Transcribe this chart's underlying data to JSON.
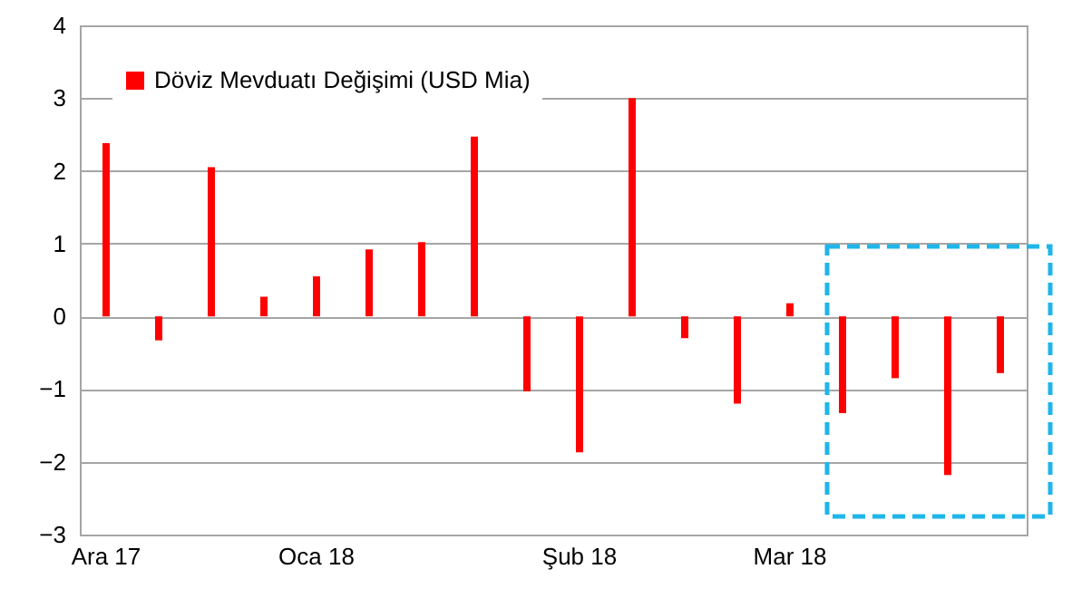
{
  "chart_data": {
    "type": "bar",
    "categories": [
      "Ara 17",
      null,
      null,
      null,
      "Oca 18",
      null,
      null,
      null,
      null,
      "Şub 18",
      null,
      null,
      null,
      "Mar 18",
      null,
      null,
      null,
      null
    ],
    "series": [
      {
        "name": "Döviz Mevduatı Değişimi (USD Mia)",
        "color": "#ff0000",
        "values": [
          2.38,
          -0.33,
          2.05,
          0.27,
          0.55,
          0.92,
          1.02,
          2.47,
          -1.03,
          -1.87,
          3.0,
          -0.3,
          -1.2,
          0.18,
          -1.33,
          -0.85,
          -2.18,
          -0.78
        ]
      }
    ],
    "ylim": [
      -3,
      4
    ],
    "yticks": [
      -3,
      -2,
      -1,
      0,
      1,
      2,
      3,
      4
    ],
    "grid": "y",
    "legend": "top left"
  }
}
